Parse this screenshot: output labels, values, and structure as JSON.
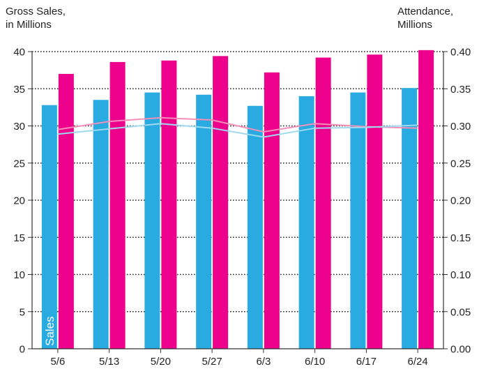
{
  "chart_data": {
    "type": "bar",
    "left_axis_title": [
      "Gross Sales,",
      "in Millions"
    ],
    "right_axis_title": [
      "Attendance,",
      "Millions"
    ],
    "categories": [
      "5/6",
      "5/13",
      "5/20",
      "5/27",
      "6/3",
      "6/10",
      "6/17",
      "6/24"
    ],
    "left_ylim": [
      0,
      40
    ],
    "left_ticks": [
      "0",
      "5",
      "10",
      "15",
      "20",
      "25",
      "30",
      "35",
      "40"
    ],
    "right_ylim": [
      0,
      0.4
    ],
    "right_ticks": [
      "0.00",
      "0.05",
      "0.10",
      "0.15",
      "0.20",
      "0.25",
      "0.30",
      "0.35",
      "0.40"
    ],
    "grid": "horizontal-dotted",
    "inline_label": "Sales",
    "series": [
      {
        "name": "Sales",
        "kind": "bar",
        "axis": "left",
        "color": "#29abe2",
        "values": [
          32.8,
          33.5,
          34.5,
          34.2,
          32.7,
          34.0,
          34.5,
          35.1
        ]
      },
      {
        "kind": "bar",
        "axis": "left",
        "color": "#ec008c",
        "values": [
          37.0,
          38.6,
          38.8,
          39.4,
          37.2,
          39.2,
          39.6,
          40.2
        ]
      },
      {
        "kind": "line",
        "axis": "right",
        "color": "#f48fb8",
        "values": [
          0.295,
          0.306,
          0.311,
          0.308,
          0.292,
          0.303,
          0.299,
          0.297
        ]
      },
      {
        "kind": "line",
        "axis": "right",
        "color": "#9fd9ee",
        "values": [
          0.289,
          0.296,
          0.303,
          0.297,
          0.285,
          0.297,
          0.298,
          0.301
        ]
      }
    ]
  }
}
